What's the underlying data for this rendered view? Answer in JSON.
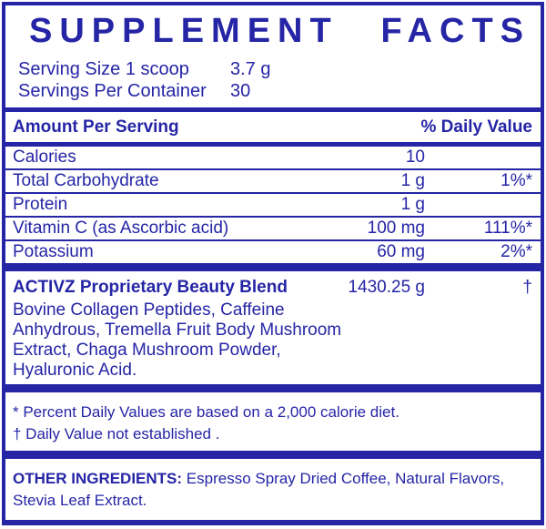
{
  "colors": {
    "accent_blue": "#2525A6",
    "background": "#FFFFFF"
  },
  "title": {
    "word1": "SUPPLEMENT",
    "word2": "FACTS"
  },
  "serving": {
    "rows": [
      {
        "label": "Serving Size 1 scoop",
        "value": "3.7 g"
      },
      {
        "label": "Servings Per Container",
        "value": "30"
      }
    ]
  },
  "table": {
    "header": {
      "left": "Amount Per Serving",
      "right": "% Daily Value"
    },
    "rows": [
      {
        "name": "Calories",
        "amount": "10",
        "dv": ""
      },
      {
        "name": "Total Carbohydrate",
        "amount": "1 g",
        "dv": "1%*"
      },
      {
        "name": "Protein",
        "amount": "1 g",
        "dv": ""
      },
      {
        "name": "Vitamin C (as Ascorbic acid)",
        "amount": "100 mg",
        "dv": "111%*"
      },
      {
        "name": "Potassium",
        "amount": "60 mg",
        "dv": "2%*"
      }
    ]
  },
  "blend": {
    "name": "ACTIVZ Proprietary Beauty Blend",
    "amount": "1430.25 g",
    "dv": "†",
    "description": "Bovine Collagen Peptides, Caffeine Anhydrous, Tremella Fruit Body Mushroom Extract, Chaga Mushroom Powder, Hyaluronic Acid.",
    "description_lines": [
      "Bovine Collagen Peptides, Caffeine",
      "Anhydrous, Tremella Fruit Body Mushroom",
      "Extract, Chaga Mushroom Powder,",
      "Hyaluronic Acid."
    ]
  },
  "footnotes": [
    "* Percent Daily Values are based on a 2,000 calorie diet.",
    "† Daily Value not established ."
  ],
  "other_ingredients": {
    "label": "OTHER INGREDIENTS:",
    "text": "Espresso Spray Dried Coffee, Natural Flavors, Stevia Leaf Extract."
  }
}
